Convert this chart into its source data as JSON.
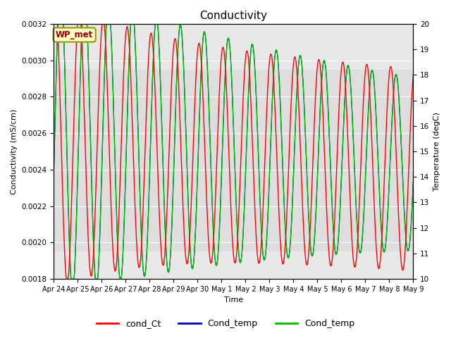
{
  "title": "Conductivity",
  "xlabel": "Time",
  "ylabel_left": "Conductivity (mS/cm)",
  "ylabel_right": "Temperature (degC)",
  "ylim_left": [
    0.0018,
    0.0032
  ],
  "ylim_right": [
    10.0,
    20.0
  ],
  "yticks_left": [
    0.0018,
    0.002,
    0.0022,
    0.0024,
    0.0026,
    0.0028,
    0.003,
    0.0032
  ],
  "yticks_right": [
    10.0,
    11.0,
    12.0,
    13.0,
    14.0,
    15.0,
    16.0,
    17.0,
    18.0,
    19.0,
    20.0
  ],
  "xtick_labels": [
    "Apr 24",
    "Apr 25",
    "Apr 26",
    "Apr 27",
    "Apr 28",
    "Apr 29",
    "Apr 30",
    "May 1",
    "May 2",
    "May 3",
    "May 4",
    "May 5",
    "May 6",
    "May 7",
    "May 8",
    "May 9"
  ],
  "color_cond_ct": "#ff0000",
  "color_cond_temp_blue": "#0000bb",
  "color_cond_temp_green": "#00bb00",
  "legend_labels": [
    "cond_Ct",
    "Cond_temp",
    "Cond_temp"
  ],
  "wp_met_box_color": "#ffffcc",
  "wp_met_text_color": "#990000",
  "wp_met_border_color": "#999900",
  "background_inner": "#e8e8e8",
  "background_outer": "#ffffff",
  "grid_color": "#ffffff",
  "n_points": 800
}
